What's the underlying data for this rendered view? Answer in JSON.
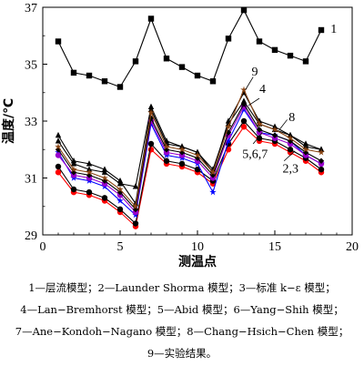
{
  "chart_data": {
    "type": "line",
    "xlabel": "测温点",
    "ylabel": "温度/℃",
    "xlim": [
      0,
      20
    ],
    "ylim": [
      29,
      37
    ],
    "xticks": [
      0,
      5,
      10,
      15,
      20
    ],
    "yticks": [
      29,
      31,
      33,
      35,
      37
    ],
    "x": [
      1,
      2,
      3,
      4,
      5,
      6,
      7,
      8,
      9,
      10,
      11,
      12,
      13,
      14,
      15,
      16,
      17,
      18
    ],
    "series": [
      {
        "name": "1",
        "color": "#000000",
        "marker": "square",
        "values": [
          35.8,
          34.7,
          34.6,
          34.4,
          34.2,
          35.1,
          36.6,
          35.2,
          34.9,
          34.6,
          34.4,
          35.9,
          36.9,
          35.8,
          35.5,
          35.3,
          35.1,
          36.2
        ]
      },
      {
        "name": "2",
        "color": "#ff0000",
        "marker": "circle",
        "values": [
          31.2,
          30.5,
          30.4,
          30.2,
          29.8,
          29.3,
          32.0,
          31.5,
          31.4,
          31.2,
          30.8,
          32.0,
          32.8,
          32.3,
          32.2,
          31.9,
          31.6,
          31.2
        ]
      },
      {
        "name": "3",
        "color": "#000000",
        "marker": "circle",
        "values": [
          31.4,
          30.6,
          30.5,
          30.3,
          29.9,
          29.4,
          32.2,
          31.6,
          31.5,
          31.3,
          30.9,
          32.2,
          33.0,
          32.4,
          32.3,
          32.0,
          31.7,
          31.3
        ]
      },
      {
        "name": "4",
        "color": "#000000",
        "marker": "triangle",
        "values": [
          32.3,
          31.5,
          31.3,
          31.2,
          30.8,
          30.7,
          33.5,
          32.3,
          32.1,
          31.9,
          31.2,
          33.0,
          34.0,
          33.0,
          32.8,
          32.5,
          32.2,
          32.0
        ]
      },
      {
        "name": "5",
        "color": "#0000ff",
        "marker": "star",
        "values": [
          31.9,
          31.0,
          30.9,
          30.7,
          30.2,
          29.7,
          32.9,
          31.8,
          31.7,
          31.5,
          30.5,
          32.3,
          33.4,
          32.6,
          32.5,
          32.3,
          31.8,
          31.5
        ]
      },
      {
        "name": "6",
        "color": "#9900cc",
        "marker": "circle",
        "values": [
          31.8,
          31.1,
          31.0,
          30.8,
          30.4,
          29.8,
          33.0,
          31.9,
          31.8,
          31.6,
          31.0,
          32.5,
          33.5,
          32.6,
          32.4,
          32.2,
          31.8,
          31.5
        ]
      },
      {
        "name": "7",
        "color": "#000000",
        "marker": "diamond",
        "values": [
          32.0,
          31.2,
          31.1,
          30.9,
          30.5,
          29.9,
          33.1,
          32.0,
          31.9,
          31.7,
          31.1,
          32.6,
          33.6,
          32.7,
          32.5,
          32.3,
          31.9,
          31.6
        ]
      },
      {
        "name": "8",
        "color": "#000000",
        "marker": "triangle",
        "values": [
          32.5,
          31.6,
          31.5,
          31.3,
          30.9,
          30.1,
          33.4,
          32.2,
          32.1,
          31.9,
          31.3,
          32.9,
          33.7,
          32.9,
          32.7,
          32.5,
          32.1,
          32.0
        ]
      },
      {
        "name": "9",
        "color": "#8b4513",
        "marker": "star",
        "values": [
          32.1,
          31.3,
          31.2,
          31.0,
          30.6,
          30.0,
          33.3,
          32.1,
          32.0,
          31.8,
          31.2,
          32.8,
          34.1,
          32.9,
          32.7,
          32.4,
          32.0,
          31.9
        ]
      }
    ],
    "annotations": [
      {
        "text": "1",
        "x": 18.6,
        "y": 36.1
      },
      {
        "text": "9",
        "x": 13.5,
        "y": 34.6
      },
      {
        "text": "4",
        "x": 14.0,
        "y": 34.0
      },
      {
        "text": "8",
        "x": 15.9,
        "y": 33.0
      },
      {
        "text": "5,6,7",
        "x": 12.9,
        "y": 31.7
      },
      {
        "text": "2,3",
        "x": 15.5,
        "y": 31.2
      }
    ]
  },
  "caption": {
    "line1": "1—层流模型；2—Launder Shorma 模型；3—标准 k−ε 模型；",
    "line2": "4—Lan−Bremhorst 模型；5—Abid 模型；6—Yang−Shih 模型；",
    "line3": "7—Ane−Kondoh−Nagano 模型；8—Chang−Hsich−Chen 模型；",
    "line4": "9—实验结果。"
  }
}
